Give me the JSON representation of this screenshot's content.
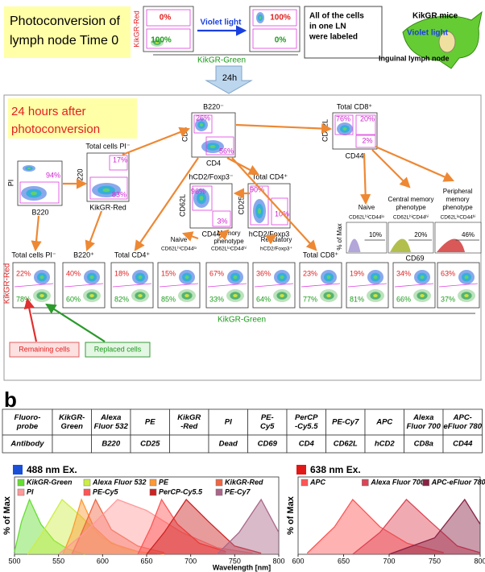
{
  "panel_a": {
    "time0": {
      "title": [
        "Photoconversion of",
        "lymph node  Time 0"
      ],
      "y_label": "KikGR-Red",
      "x_label": "KikGR-Green",
      "before": {
        "red": "0%",
        "green": "100%"
      },
      "light": "Violet light",
      "after": {
        "red": "100%",
        "green": "0%"
      },
      "note": [
        "All of the cells",
        "in one LN",
        "were labeled"
      ]
    },
    "mouse": {
      "title": "KikGR mice",
      "light": "Violet light",
      "node": "Inguinal lymph node"
    },
    "interval": "24h",
    "after": {
      "title": [
        "24 hours after",
        "photoconversion"
      ],
      "pi_plot": {
        "y_label": "PI",
        "x_label": "B220",
        "gates": [
          "94%"
        ]
      },
      "pi_neg": {
        "title": "Total cells PI⁻",
        "y_label": "B220",
        "x_label": "KikGR-Red",
        "gates": [
          "17%",
          "83%"
        ]
      },
      "b220_neg": {
        "title": "B220⁻",
        "y_label": "CD8",
        "x_label": "CD4",
        "gates": [
          "26%",
          "56%"
        ]
      },
      "cd8": {
        "title": "Total CD8⁺",
        "y_label": "CD62L",
        "x_label": "CD44",
        "gates": [
          "76%",
          "20%",
          "2%"
        ]
      },
      "foxp3_neg": {
        "title": "hCD2/Foxp3⁻",
        "y_label": "CD62L",
        "x_label": "CD44",
        "gates": [
          "96%",
          "3%"
        ]
      },
      "cd4": {
        "title": "Total CD4⁺",
        "y_label": "CD25",
        "x_label": "hCD2/Foxp3",
        "gates": [
          "90%",
          "10%"
        ]
      },
      "cd69": {
        "y_label": "% of Max",
        "x_label": "CD69",
        "panels": [
          {
            "title": [
              "Naive"
            ],
            "subset": "CD62LʰⁱCD44ˡᵒ",
            "gate": "10%"
          },
          {
            "title": [
              "Central memory",
              "phenotype"
            ],
            "subset": "CD62LʰⁱCD44ʰⁱ",
            "gate": "20%"
          },
          {
            "title": [
              "Peripheral",
              "memory",
              "phenotype"
            ],
            "subset": "CD62LˡᵒCD44ʰⁱ",
            "gate": "46%"
          }
        ]
      },
      "groups": [
        {
          "title": [
            "Naive"
          ],
          "subset": "CD62LʰⁱCD44ˡᵒ"
        },
        {
          "title": [
            "Memory",
            "phenotype"
          ],
          "subset": "CD62LˡᵒCD44ʰⁱ"
        },
        {
          "title": [
            "Regulatory"
          ],
          "subset": "hCD2/Foxp3⁺"
        }
      ],
      "bottom": {
        "y_label": "KikGR-Red",
        "x_label": "KikGR-Green",
        "plots": [
          {
            "title": "Total cells PI⁻",
            "red": "22%",
            "green": "78%"
          },
          {
            "title": "B220⁺",
            "red": "40%",
            "green": "60%"
          },
          {
            "title": "Total CD4⁺",
            "red": "18%",
            "green": "82%"
          },
          {
            "red": "15%",
            "green": "85%"
          },
          {
            "red": "67%",
            "green": "33%"
          },
          {
            "red": "36%",
            "green": "64%"
          },
          {
            "title": "Total CD8⁺",
            "red": "23%",
            "green": "77%"
          },
          {
            "red": "19%",
            "green": "81%"
          },
          {
            "red": "34%",
            "green": "66%"
          },
          {
            "red": "63%",
            "green": "37%"
          }
        ]
      },
      "remaining": "Remaining cells",
      "replaced": "Replaced cells"
    }
  },
  "panel_b": {
    "label": "b",
    "table": {
      "rows": [
        [
          [
            "Fluoro-",
            "probe"
          ],
          [
            "KikGR-",
            "Green"
          ],
          [
            "Alexa",
            "Fluor 532"
          ],
          [
            "PE"
          ],
          [
            "KikGR",
            "-Red"
          ],
          [
            "PI"
          ],
          [
            "PE-",
            "Cy5"
          ],
          [
            "PerCP",
            "-Cy5.5"
          ],
          [
            "PE-Cy7"
          ],
          [
            "APC"
          ],
          [
            "Alexa",
            "Fluor 700"
          ],
          [
            "APC-",
            "eFluor 780"
          ]
        ],
        [
          [
            "Antibody"
          ],
          null,
          [
            "B220"
          ],
          [
            "CD25"
          ],
          null,
          [
            "Dead"
          ],
          [
            "CD69"
          ],
          [
            "CD4"
          ],
          [
            "CD62L"
          ],
          [
            "hCD2"
          ],
          [
            "CD8a"
          ],
          [
            "CD44"
          ]
        ]
      ]
    },
    "chart_data": [
      {
        "type": "area",
        "title": "488 nm Ex.",
        "title_color": "#1a4fd8",
        "y_label": "% of Max",
        "x_label": "Wavelength [nm]",
        "xlim": [
          500,
          800
        ],
        "xticks": [
          500,
          550,
          600,
          650,
          700,
          750,
          800
        ],
        "ylim": [
          0,
          100
        ],
        "series": [
          {
            "name": "KikGR-Green",
            "color": "#66dd33",
            "x": [
              500,
              508,
              517,
              530,
              545,
              560,
              580
            ],
            "values": [
              5,
              60,
              100,
              55,
              25,
              10,
              0
            ]
          },
          {
            "name": "Alexa Fluor 532",
            "color": "#ccee44",
            "x": [
              515,
              530,
              554,
              575,
              600,
              625,
              650
            ],
            "values": [
              0,
              35,
              100,
              70,
              30,
              10,
              2
            ]
          },
          {
            "name": "PE",
            "color": "#ff9933",
            "x": [
              555,
              565,
              576,
              590,
              610,
              640,
              670
            ],
            "values": [
              0,
              40,
              100,
              50,
              20,
              5,
              0
            ]
          },
          {
            "name": "KikGR-Red",
            "color": "#ee6644",
            "x": [
              565,
              575,
              592,
              610,
              640,
              670
            ],
            "values": [
              0,
              35,
              100,
              45,
              15,
              3
            ]
          },
          {
            "name": "PI",
            "color": "#ff9999",
            "x": [
              550,
              580,
              617,
              650,
              690,
              730,
              770
            ],
            "values": [
              0,
              40,
              100,
              80,
              40,
              12,
              2
            ]
          },
          {
            "name": "PE-Cy5",
            "color": "#ff5555",
            "x": [
              640,
              655,
              667,
              685,
              710,
              740
            ],
            "values": [
              0,
              50,
              100,
              55,
              20,
              5
            ]
          },
          {
            "name": "PerCP-Cy5.5",
            "color": "#cc2222",
            "x": [
              650,
              670,
              695,
              720,
              750,
              780
            ],
            "values": [
              0,
              40,
              100,
              60,
              15,
              2
            ]
          },
          {
            "name": "PE-Cy7",
            "color": "#aa6688",
            "x": [
              730,
              755,
              780,
              800
            ],
            "values": [
              0,
              40,
              100,
              40
            ]
          }
        ]
      },
      {
        "type": "area",
        "title": "638 nm Ex.",
        "title_color": "#e01818",
        "y_label": "% of Max",
        "xlim": [
          600,
          800
        ],
        "xticks": [
          600,
          650,
          700,
          750,
          800
        ],
        "ylim": [
          0,
          100
        ],
        "series": [
          {
            "name": "APC",
            "color": "#ff5555",
            "x": [
              610,
              640,
              660,
              690,
              720,
              760
            ],
            "values": [
              2,
              50,
              100,
              50,
              20,
              3
            ]
          },
          {
            "name": "Alexa Fluor 700",
            "color": "#dd4455",
            "x": [
              660,
              690,
              719,
              745,
              775,
              800
            ],
            "values": [
              0,
              40,
              100,
              60,
              15,
              3
            ]
          },
          {
            "name": "APC-eFluor 780",
            "color": "#882244",
            "x": [
              700,
              750,
              783,
              800
            ],
            "values": [
              0,
              30,
              100,
              55
            ]
          }
        ]
      }
    ]
  }
}
